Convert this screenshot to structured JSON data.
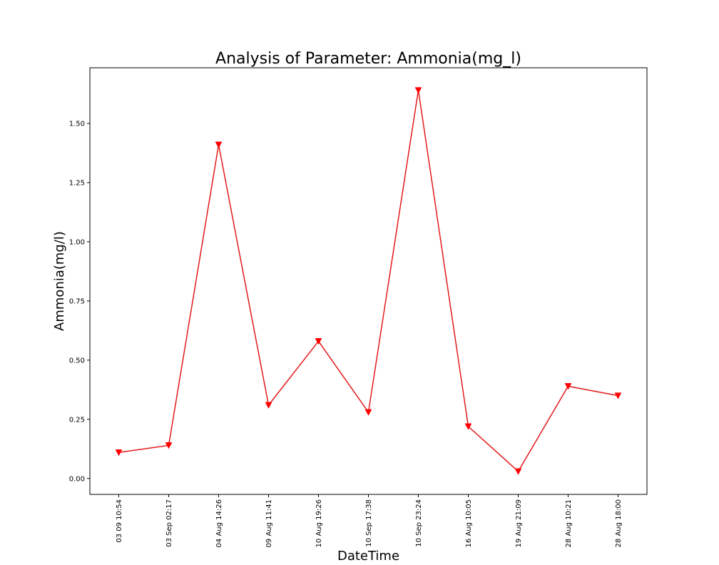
{
  "chart_data": {
    "type": "line",
    "title": "Analysis of Parameter: Ammonia(mg_l)",
    "xlabel": "DateTime",
    "ylabel": "Ammonia(mg/l)",
    "categories": [
      "03 09 10:54",
      "03 Sep 02:17",
      "04 Aug 14:26",
      "09 Aug 11:41",
      "10 Aug 19:26",
      "10 Sep 17:38",
      "10 Sep 23:24",
      "16 Aug 10:05",
      "19 Aug 21:09",
      "28 Aug 10:21",
      "28 Aug 18:00"
    ],
    "series": [
      {
        "values": [
          0.11,
          0.14,
          1.41,
          0.31,
          0.58,
          0.28,
          1.64,
          0.22,
          0.03,
          0.39,
          0.35
        ],
        "color": "#ff0000",
        "line_color": "#e31a1c",
        "marker": "triangle-down"
      }
    ],
    "ylim": [
      -0.067,
      1.735
    ],
    "yticks": [
      0.0,
      0.25,
      0.5,
      0.75,
      1.0,
      1.25,
      1.5
    ],
    "ytick_labels": [
      "0.00",
      "0.25",
      "0.50",
      "0.75",
      "1.00",
      "1.25",
      "1.50"
    ],
    "grid": false,
    "legend": "none"
  }
}
